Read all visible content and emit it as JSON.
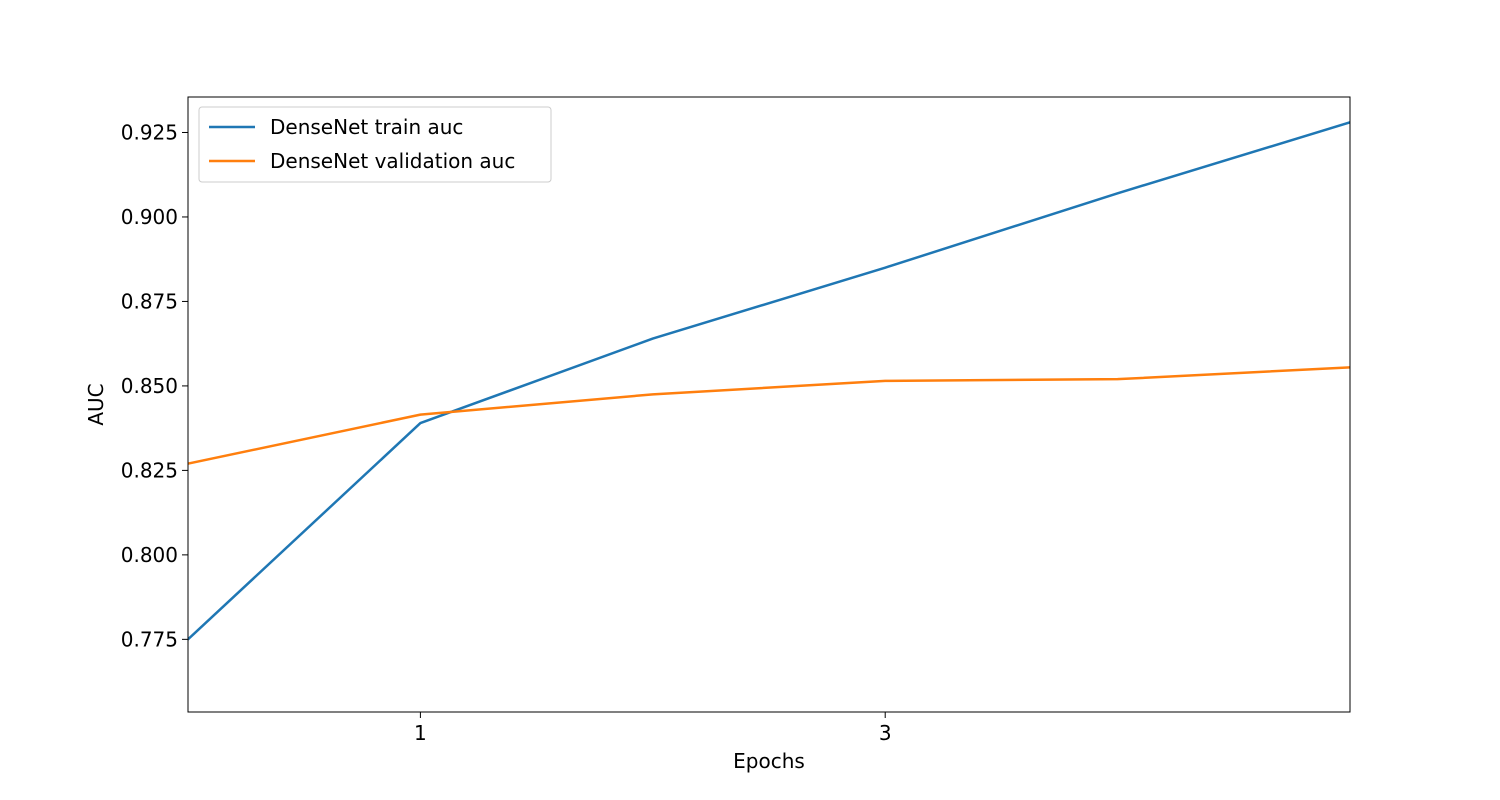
{
  "chart_data": {
    "type": "line",
    "title": "",
    "xlabel": "Epochs",
    "ylabel": "AUC",
    "x": [
      0,
      1,
      2,
      3,
      4,
      5
    ],
    "xlim": [
      0,
      5
    ],
    "ylim": [
      0.7535,
      0.9355
    ],
    "xticks": [
      1,
      3
    ],
    "xtick_labels": [
      "1",
      "3"
    ],
    "yticks": [
      0.775,
      0.8,
      0.825,
      0.85,
      0.875,
      0.9,
      0.925
    ],
    "ytick_labels": [
      "0.775",
      "0.800",
      "0.825",
      "0.850",
      "0.875",
      "0.900",
      "0.925"
    ],
    "grid": false,
    "legend_position": "top-left",
    "series": [
      {
        "name": "DenseNet train auc",
        "color": "#1f77b4",
        "values": [
          0.775,
          0.839,
          0.864,
          0.885,
          0.907,
          0.928
        ]
      },
      {
        "name": "DenseNet validation auc",
        "color": "#ff7f0e",
        "values": [
          0.827,
          0.8415,
          0.8475,
          0.8515,
          0.852,
          0.8555
        ]
      }
    ]
  }
}
